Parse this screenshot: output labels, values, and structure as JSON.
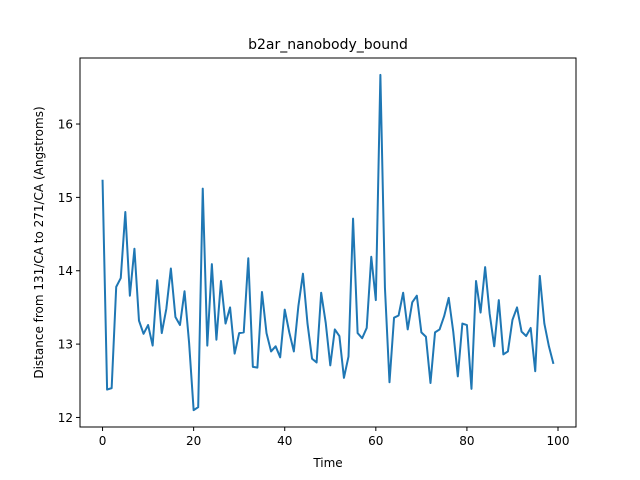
{
  "chart_data": {
    "type": "line",
    "title": "b2ar_nanobody_bound",
    "xlabel": "Time",
    "ylabel": "Distance from 131/CA to 271/CA (Angstroms)",
    "xlim": [
      -4.95,
      103.95
    ],
    "ylim": [
      11.87,
      16.9
    ],
    "xticks": [
      0,
      20,
      40,
      60,
      80,
      100
    ],
    "yticks": [
      12,
      13,
      14,
      15,
      16
    ],
    "grid": false,
    "line_color": "#1f77b4",
    "series": [
      {
        "x": [
          0,
          1,
          2,
          3,
          4,
          5,
          6,
          7,
          8,
          9,
          10,
          11,
          12,
          13,
          14,
          15,
          16,
          17,
          18,
          19,
          20,
          21,
          22,
          23,
          24,
          25,
          26,
          27,
          28,
          29,
          30,
          31,
          32,
          33,
          34,
          35,
          36,
          37,
          38,
          39,
          40,
          41,
          42,
          43,
          44,
          45,
          46,
          47,
          48,
          49,
          50,
          51,
          52,
          53,
          54,
          55,
          56,
          57,
          58,
          59,
          60,
          61,
          62,
          63,
          64,
          65,
          66,
          67,
          68,
          69,
          70,
          71,
          72,
          73,
          74,
          75,
          76,
          77,
          78,
          79,
          80,
          81,
          82,
          83,
          84,
          85,
          86,
          87,
          88,
          89,
          90,
          91,
          92,
          93,
          94,
          95,
          96,
          97,
          98,
          99
        ],
        "values": [
          15.24,
          12.38,
          12.4,
          13.78,
          13.9,
          14.8,
          13.66,
          14.3,
          13.32,
          13.14,
          13.26,
          12.98,
          13.87,
          13.15,
          13.48,
          14.03,
          13.37,
          13.26,
          13.72,
          13.02,
          12.1,
          12.14,
          15.12,
          12.98,
          14.09,
          13.06,
          13.86,
          13.28,
          13.5,
          12.87,
          13.15,
          13.16,
          14.17,
          12.69,
          12.68,
          13.71,
          13.15,
          12.9,
          12.97,
          12.82,
          13.47,
          13.16,
          12.9,
          13.52,
          13.96,
          13.28,
          12.8,
          12.75,
          13.7,
          13.29,
          12.71,
          13.2,
          13.11,
          12.54,
          12.83,
          14.71,
          13.15,
          13.08,
          13.22,
          14.19,
          13.6,
          16.67,
          13.77,
          12.48,
          13.36,
          13.39,
          13.7,
          13.2,
          13.57,
          13.66,
          13.16,
          13.1,
          12.47,
          13.16,
          13.2,
          13.38,
          13.63,
          13.17,
          12.56,
          13.28,
          13.26,
          12.39,
          13.86,
          13.43,
          14.05,
          13.41,
          12.97,
          13.6,
          12.86,
          12.9,
          13.33,
          13.5,
          13.17,
          13.11,
          13.22,
          12.63,
          13.93,
          13.28,
          12.97,
          12.73
        ]
      }
    ]
  }
}
